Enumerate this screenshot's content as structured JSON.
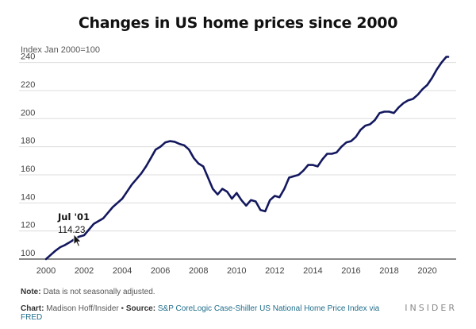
{
  "chart_data": {
    "type": "line",
    "title": "Changes in US home prices since 2000",
    "ylabel": "Index Jan 2000=100",
    "xlabel": "",
    "xlim": [
      2000,
      2021.1
    ],
    "ylim": [
      100,
      246
    ],
    "y_ticks": [
      100,
      120,
      140,
      160,
      180,
      200,
      220,
      240
    ],
    "x_ticks": [
      2000,
      2002,
      2004,
      2006,
      2008,
      2010,
      2012,
      2014,
      2016,
      2018,
      2020
    ],
    "grid": "horizontal",
    "line_color": "#13185e",
    "series": [
      {
        "x": [
          2000.0,
          2000.25,
          2000.5,
          2000.75,
          2001.0,
          2001.25,
          2001.5,
          2001.75,
          2002.0,
          2002.25,
          2002.5,
          2002.75,
          2003.0,
          2003.25,
          2003.5,
          2003.75,
          2004.0,
          2004.25,
          2004.5,
          2004.75,
          2005.0,
          2005.25,
          2005.5,
          2005.75,
          2006.0,
          2006.25,
          2006.5,
          2006.75,
          2007.0,
          2007.25,
          2007.5,
          2007.75,
          2008.0,
          2008.25,
          2008.5,
          2008.75,
          2009.0,
          2009.25,
          2009.5,
          2009.75,
          2010.0,
          2010.25,
          2010.5,
          2010.75,
          2011.0,
          2011.25,
          2011.5,
          2011.75,
          2012.0,
          2012.25,
          2012.5,
          2012.75,
          2013.0,
          2013.25,
          2013.5,
          2013.75,
          2014.0,
          2014.25,
          2014.5,
          2014.75,
          2015.0,
          2015.25,
          2015.5,
          2015.75,
          2016.0,
          2016.25,
          2016.5,
          2016.75,
          2017.0,
          2017.25,
          2017.5,
          2017.75,
          2018.0,
          2018.25,
          2018.5,
          2018.75,
          2019.0,
          2019.25,
          2019.5,
          2019.75,
          2020.0,
          2020.25,
          2020.5,
          2020.75,
          2021.0,
          2021.1
        ],
        "y": [
          100,
          103,
          106,
          108.5,
          110,
          112,
          114.2,
          116,
          117,
          121,
          125,
          127,
          129,
          133,
          137,
          140,
          143,
          148,
          153,
          157,
          161,
          166,
          172,
          178,
          180,
          183,
          184,
          183.5,
          182,
          181,
          178,
          172,
          168,
          166,
          158,
          150,
          146,
          150,
          148,
          143,
          147,
          142,
          138,
          142,
          141,
          135,
          134,
          142,
          145,
          144,
          150,
          158,
          159,
          160,
          163,
          167,
          167,
          166,
          171,
          175,
          175,
          176,
          180,
          183,
          184,
          187,
          192,
          195,
          196,
          199,
          204,
          205,
          205,
          204,
          208,
          211,
          213,
          214,
          217,
          221,
          224,
          229,
          235,
          240,
          244,
          244
        ]
      }
    ],
    "annotation": {
      "label": "Jul '01",
      "value": "114.23",
      "x": 2001.5,
      "y": 114.23
    },
    "note_prefix": "Note:",
    "note_text": "Data is not seasonally adjusted.",
    "source_chart_prefix": "Chart:",
    "source_chart_author": "Madison Hoff/Insider",
    "source_bullet": "•",
    "source_prefix": "Source:",
    "source_link": "S&P CoreLogic Case-Shiller US National Home Price Index via FRED",
    "brand": "INSIDER"
  }
}
